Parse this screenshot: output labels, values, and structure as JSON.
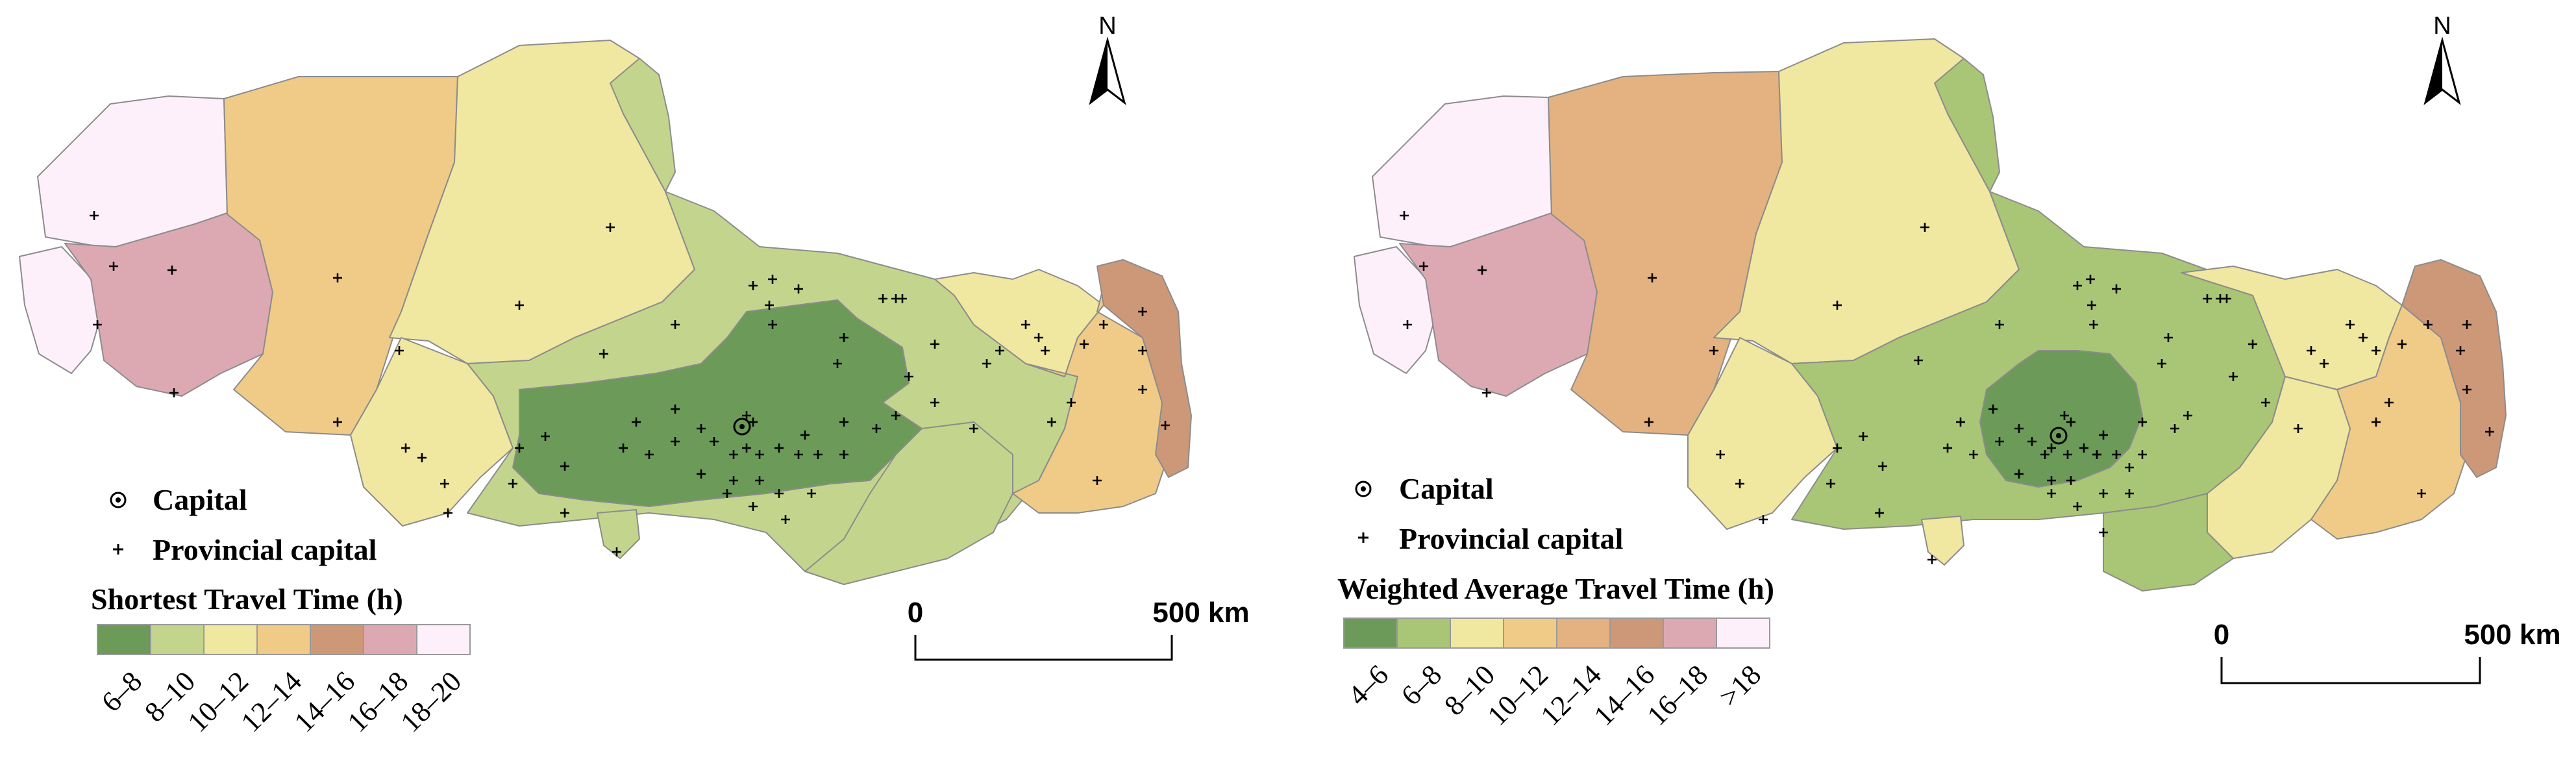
{
  "colors": {
    "c1": "#6c9a58",
    "c2": "#c3d58c",
    "c3": "#f0e7a0",
    "c4": "#efcb87",
    "c5": "#cc9878",
    "c6": "#dca9b3",
    "c7": "#fdf0fb",
    "c8": "#e3b280",
    "c9": "#a9c576"
  },
  "left_map": {
    "legend": {
      "capital_label": "Capital",
      "provincial_label": "Provincial capital",
      "title": "Shortest Travel Time (h)",
      "classes": [
        "6–8",
        "8–10",
        "10–12",
        "12–14",
        "14–16",
        "16–18",
        "18–20"
      ]
    },
    "north": "N",
    "scale": {
      "zero": "0",
      "max": "500 km"
    }
  },
  "right_map": {
    "legend": {
      "capital_label": "Capital",
      "provincial_label": "Provincial capital",
      "title": "Weighted Average Travel Time (h)",
      "classes": [
        "4–6",
        "6–8",
        "8–10",
        "10–12",
        "12–14",
        "14–16",
        "16–18",
        ">18"
      ]
    },
    "north": "N",
    "scale": {
      "zero": "0",
      "max": "500 km"
    }
  }
}
